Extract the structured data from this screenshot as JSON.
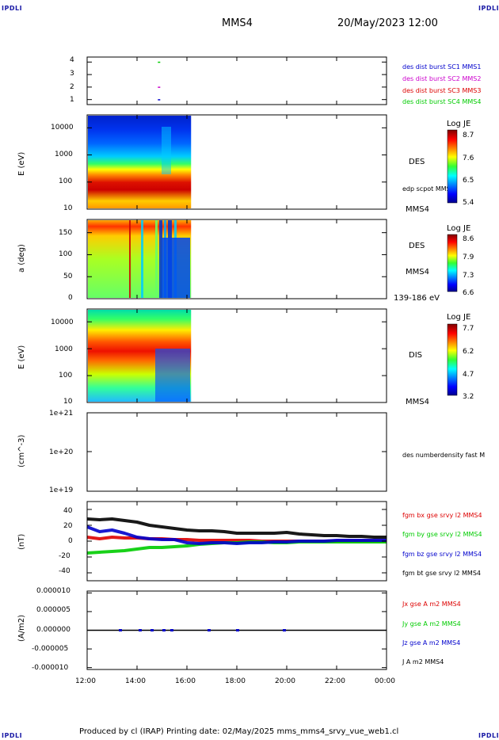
{
  "header": {
    "corner_left": "IPDLI",
    "corner_right": "IPDLI",
    "spacecraft": "MMS4",
    "datetime": "20/May/2023 12:00"
  },
  "footer": {
    "text": "Produced by cl (IRAP)   Printing date: 02/May/2025   mms_mms4_srvy_vue_web1.cl",
    "corner_left": "IPDLI",
    "corner_right": "IPDLI"
  },
  "time_axis": {
    "ticks": [
      "12:00",
      "14:00",
      "16:00",
      "18:00",
      "20:00",
      "22:00",
      "00:00"
    ]
  },
  "colors": {
    "red": "#dd0000",
    "green": "#00cc00",
    "blue": "#0000cc",
    "magenta": "#cc00cc",
    "black": "#000000"
  },
  "chart_data": [
    {
      "type": "scatter",
      "panel": "burst",
      "ylim": [
        0.6,
        4.4
      ],
      "yticks": [
        "1",
        "2",
        "3",
        "4"
      ],
      "legend": [
        "des dist burst SC1 MMS1",
        "des dist burst SC2 MMS2",
        "des dist burst SC3 MMS3",
        "des dist burst SC4 MMS4"
      ],
      "points": [
        {
          "series": "MMS1",
          "t": "14:52",
          "y": 1
        },
        {
          "series": "MMS2",
          "t": "14:52",
          "y": 2
        },
        {
          "series": "MMS4",
          "t": "14:52",
          "y": 4
        }
      ]
    },
    {
      "type": "heatmap",
      "panel": "des_energy",
      "ylabel": "E (eV)",
      "yscale": "log",
      "yticks": [
        "10",
        "100",
        "1000",
        "10000"
      ],
      "ylim": [
        10,
        30000
      ],
      "xrange": [
        "12:00",
        "16:10"
      ],
      "colorbar": {
        "title": "Log JE",
        "ticks": [
          "8.7",
          "7.6",
          "6.5",
          "5.4"
        ]
      },
      "labels": [
        "DES",
        "edp scpot MMS4",
        "MMS4"
      ]
    },
    {
      "type": "heatmap",
      "panel": "des_pitch",
      "ylabel": "a (deg)",
      "yticks": [
        "0",
        "50",
        "100",
        "150"
      ],
      "ylim": [
        0,
        180
      ],
      "xrange": [
        "12:00",
        "16:10"
      ],
      "colorbar": {
        "title": "Log JE",
        "ticks": [
          "8.6",
          "7.9",
          "7.3",
          "6.6"
        ]
      },
      "labels": [
        "DES",
        "MMS4",
        "139-186 eV"
      ]
    },
    {
      "type": "heatmap",
      "panel": "dis_energy",
      "ylabel": "E (eV)",
      "yscale": "log",
      "yticks": [
        "10",
        "100",
        "1000",
        "10000"
      ],
      "ylim": [
        10,
        30000
      ],
      "xrange": [
        "12:00",
        "16:10"
      ],
      "colorbar": {
        "title": "Log JE",
        "ticks": [
          "7.7",
          "6.2",
          "4.7",
          "3.2"
        ]
      },
      "labels": [
        "DIS",
        "MMS4"
      ]
    },
    {
      "type": "line",
      "panel": "density",
      "ylabel": "(cm^-3)",
      "yscale": "log",
      "yticks": [
        "1e+21",
        "1e+20",
        "1e+19"
      ],
      "ylim": [
        1e+19,
        1e+21
      ],
      "legend": [
        "des numberdensity fast M"
      ],
      "series": []
    },
    {
      "type": "line",
      "panel": "fgm",
      "ylabel": "(nT)",
      "yticks": [
        "40",
        "20",
        "0",
        "-20",
        "-40"
      ],
      "ylim": [
        -50,
        50
      ],
      "legend": [
        "fgm bx gse srvy l2 MMS4",
        "fgm by gse srvy l2 MMS4",
        "fgm bz gse srvy l2 MMS4",
        "fgm bt gse srvy l2 MMS4"
      ],
      "x": [
        "12:00",
        "12:30",
        "13:00",
        "13:30",
        "14:00",
        "14:30",
        "15:00",
        "15:30",
        "16:00",
        "16:30",
        "17:00",
        "17:30",
        "18:00",
        "18:30",
        "19:00",
        "19:30",
        "20:00",
        "20:30",
        "21:00",
        "21:30",
        "22:00",
        "22:30",
        "23:00",
        "23:30",
        "00:00"
      ],
      "series": [
        {
          "name": "bx",
          "values": [
            5,
            3,
            5,
            4,
            4,
            3,
            3,
            2,
            2,
            1,
            1,
            1,
            1,
            1,
            0,
            0,
            0,
            0,
            0,
            0,
            0,
            0,
            0,
            0,
            0
          ]
        },
        {
          "name": "by",
          "values": [
            -15,
            -14,
            -13,
            -12,
            -10,
            -8,
            -8,
            -7,
            -6,
            -4,
            -3,
            -2,
            -2,
            -1,
            -1,
            -2,
            -2,
            -1,
            -1,
            -1,
            -1,
            -1,
            -1,
            -1,
            -1
          ]
        },
        {
          "name": "bz",
          "values": [
            18,
            12,
            14,
            10,
            5,
            3,
            2,
            2,
            -2,
            -3,
            -2,
            -2,
            -3,
            -2,
            -2,
            -1,
            -1,
            0,
            0,
            0,
            1,
            1,
            1,
            1,
            1
          ]
        },
        {
          "name": "bt",
          "values": [
            28,
            27,
            28,
            26,
            24,
            20,
            18,
            16,
            14,
            13,
            13,
            12,
            10,
            10,
            10,
            10,
            11,
            9,
            8,
            7,
            7,
            6,
            6,
            5,
            5
          ]
        }
      ]
    },
    {
      "type": "line",
      "panel": "current",
      "ylabel": "(A/m2)",
      "yticks": [
        "0.000010",
        "0.000005",
        "0.000000",
        "-0.000005",
        "-0.000010"
      ],
      "ylim": [
        -1e-05,
        1e-05
      ],
      "legend": [
        "Jx gse A m2 MMS4",
        "Jy gse A m2 MMS4",
        "Jz gse A m2 MMS4",
        "J A m2 MMS4"
      ],
      "series": []
    }
  ]
}
